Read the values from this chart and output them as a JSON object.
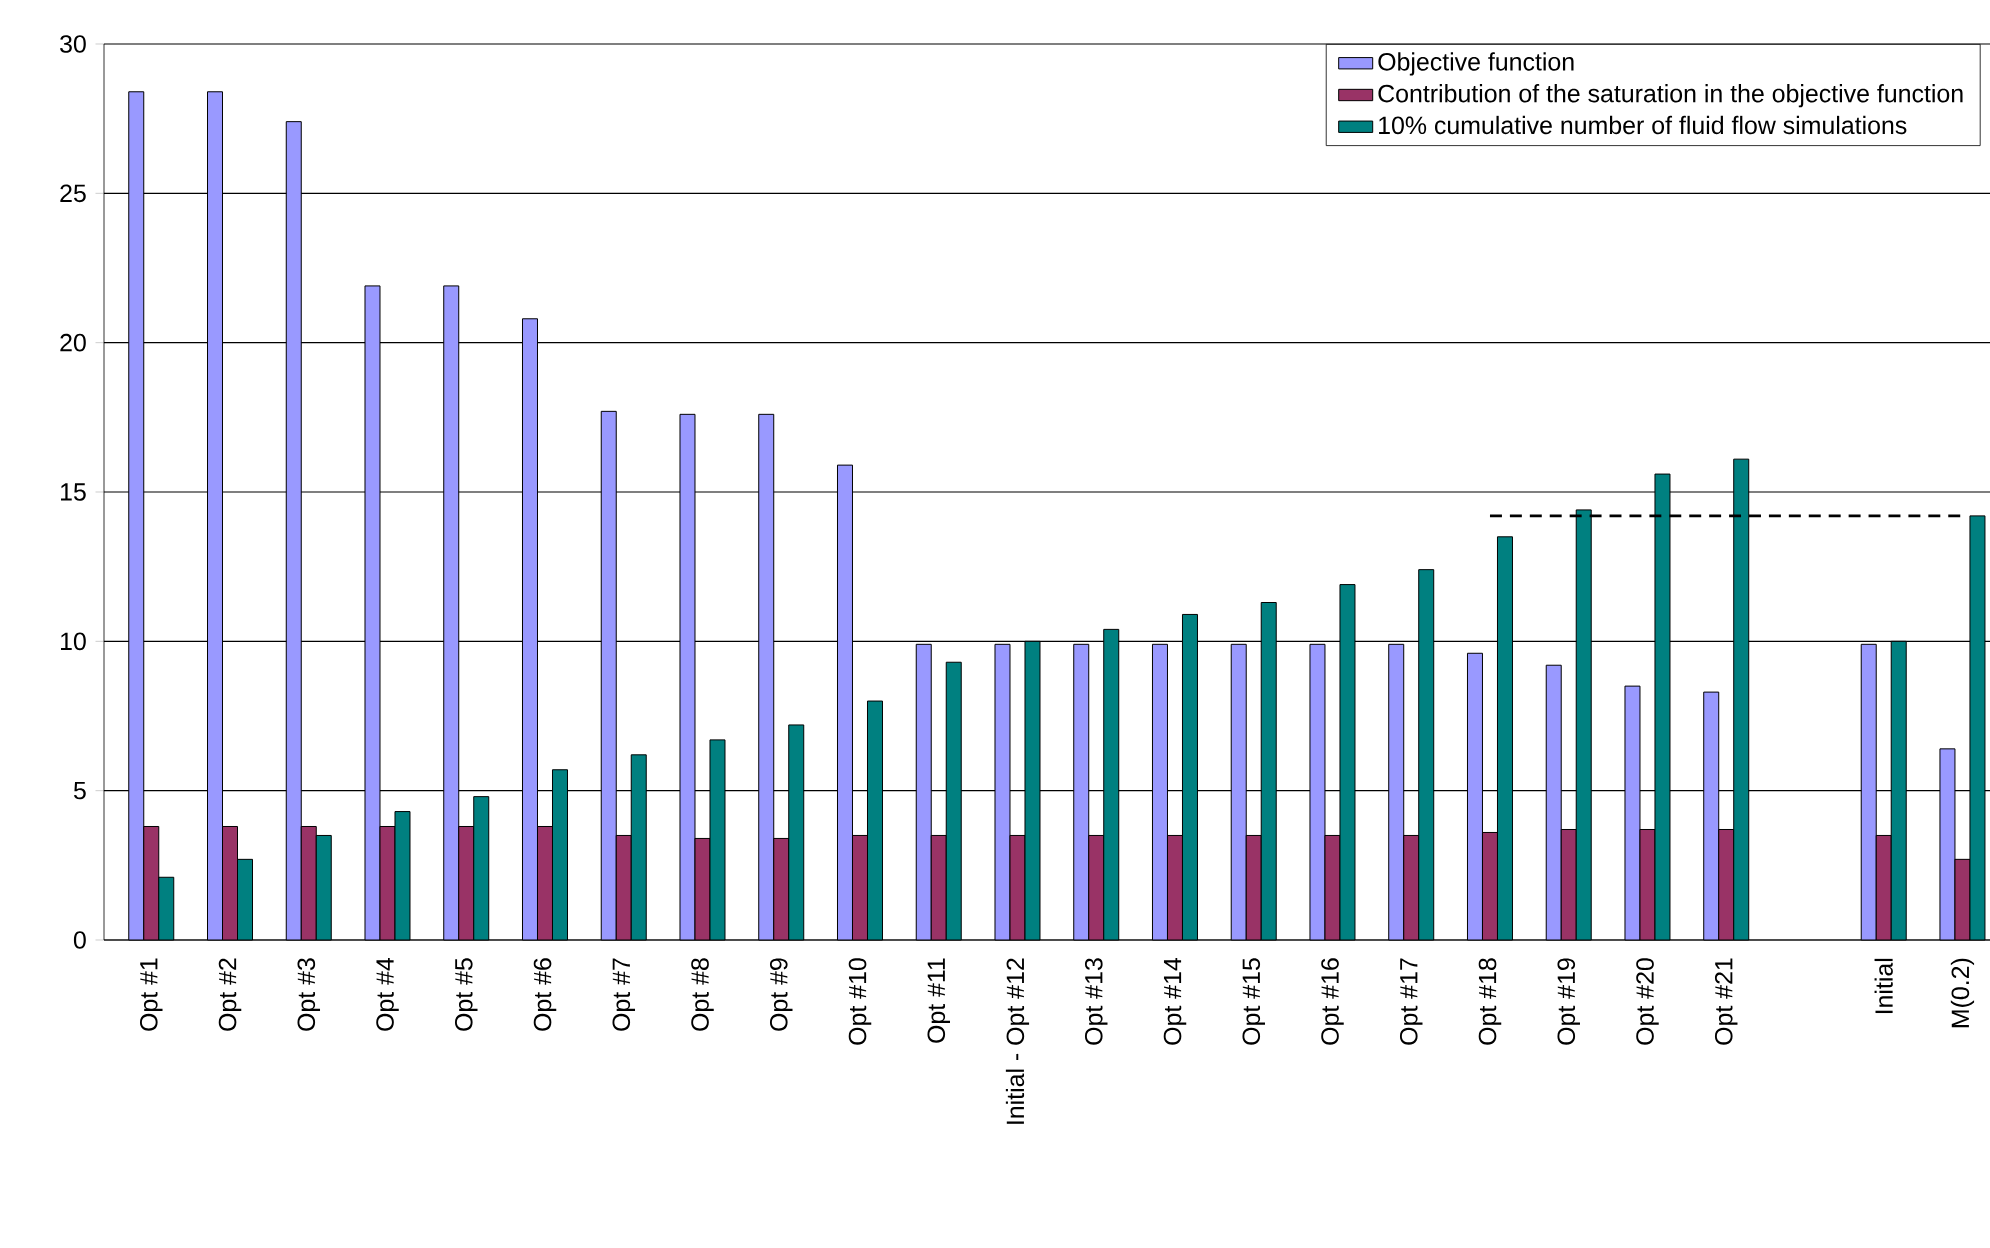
{
  "chart_data": {
    "type": "bar",
    "categories": [
      "Opt #1",
      "Opt #2",
      "Opt #3",
      "Opt #4",
      "Opt #5",
      "Opt #6",
      "Opt #7",
      "Opt #8",
      "Opt #9",
      "Opt #10",
      "Opt #11",
      "Initial - Opt #12",
      "Opt #13",
      "Opt #14",
      "Opt #15",
      "Opt #16",
      "Opt #17",
      "Opt #18",
      "Opt #19",
      "Opt #20",
      "Opt #21",
      null,
      "Initial",
      "M(0.2)"
    ],
    "series": [
      {
        "name": "Objective function",
        "color": "#9999ff",
        "values": [
          28.4,
          28.4,
          27.4,
          21.9,
          21.9,
          20.8,
          17.7,
          17.6,
          17.6,
          15.9,
          9.9,
          9.9,
          9.9,
          9.9,
          9.9,
          9.9,
          9.9,
          9.6,
          9.2,
          8.5,
          8.3,
          null,
          9.9,
          6.4
        ]
      },
      {
        "name": "Contribution of the saturation in the objective function",
        "color": "#993366",
        "values": [
          3.8,
          3.8,
          3.8,
          3.8,
          3.8,
          3.8,
          3.5,
          3.4,
          3.4,
          3.5,
          3.5,
          3.5,
          3.5,
          3.5,
          3.5,
          3.5,
          3.5,
          3.6,
          3.7,
          3.7,
          3.7,
          null,
          3.5,
          2.7
        ]
      },
      {
        "name": "10% cumulative number of fluid flow simulations",
        "color": "#008080",
        "values": [
          2.1,
          2.7,
          3.5,
          4.3,
          4.8,
          5.7,
          6.2,
          6.7,
          7.2,
          8.0,
          9.3,
          10.0,
          10.4,
          10.9,
          11.3,
          11.9,
          12.4,
          13.5,
          14.4,
          15.6,
          16.1,
          null,
          10.0,
          14.2
        ]
      },
      {
        "type": "line",
        "color": "#000000",
        "line_style": "dashed",
        "marker": "none",
        "values": [
          null,
          null,
          null,
          null,
          null,
          null,
          null,
          null,
          null,
          null,
          null,
          null,
          null,
          null,
          null,
          null,
          null,
          14.2,
          14.2,
          14.2,
          14.2,
          14.2,
          14.2,
          14.2
        ]
      }
    ],
    "ylim": [
      0,
      30
    ],
    "yticks": [
      0,
      5,
      10,
      15,
      20,
      25,
      30
    ],
    "grid": "y",
    "legend": "top right"
  }
}
